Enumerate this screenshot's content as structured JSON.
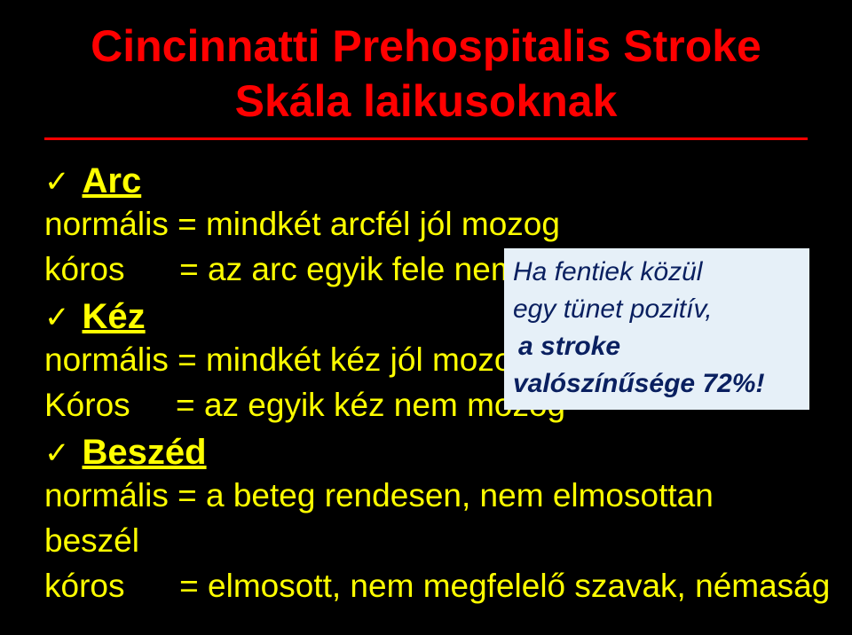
{
  "title_line1": "Cincinnatti Prehospitalis Stroke",
  "title_line2": "Skála laikusoknak",
  "sections": {
    "arc": {
      "label": "Arc",
      "normal": "normális = mindkét arcfél jól mozog",
      "koros": "kóros      = az arc egyik fele nem mozog"
    },
    "kez": {
      "label": "Kéz",
      "normal": "normális = mindkét kéz jól mozog",
      "koros": "Kóros     = az egyik kéz nem mozog"
    },
    "beszed": {
      "label": "Beszéd",
      "normal": "normális = a beteg rendesen, nem elmosottan beszél",
      "koros": "kóros      = elmosott, nem megfelelő szavak, némaság"
    }
  },
  "callout": {
    "line1": "Ha fentiek közül",
    "line2": "egy tünet pozitív,",
    "line3_a": " a stroke",
    "line3_b": "valószínűsége 72%!"
  },
  "colors": {
    "background": "#000000",
    "title": "#ff0000",
    "body": "#ffff00",
    "callout_bg": "#e6f0f8",
    "callout_text": "#0a2060"
  }
}
